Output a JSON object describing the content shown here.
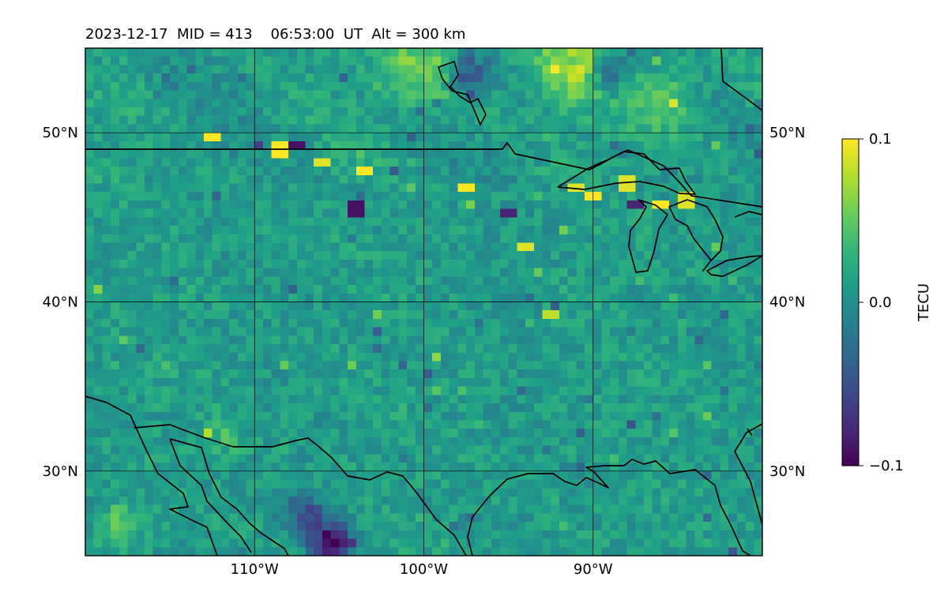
{
  "chart_data": {
    "type": "heatmap",
    "title": "2023-12-17  MID = 413    06:53:00  UT  Alt = 300 km",
    "projection": "plate-carree",
    "lon_range": [
      -120,
      -80
    ],
    "lat_range": [
      25,
      55
    ],
    "x_ticks": [
      -110,
      -100,
      -90
    ],
    "x_tick_labels": [
      "110°W",
      "100°W",
      "90°W"
    ],
    "y_ticks": [
      30,
      40,
      50
    ],
    "y_tick_labels": [
      "30°N",
      "40°N",
      "50°N"
    ],
    "grid": true,
    "colormap": "viridis",
    "colormap_stops": [
      "#440154",
      "#482878",
      "#3e4989",
      "#31688e",
      "#26828e",
      "#1f9e89",
      "#35b779",
      "#6ece58",
      "#b5de2b",
      "#fde725"
    ],
    "colorbar": {
      "label": "TECU",
      "vmin": -0.1,
      "vmax": 0.1,
      "ticks": [
        -0.1,
        0.0,
        0.1
      ],
      "tick_labels": [
        "−0.1",
        "0.0",
        "0.1"
      ]
    },
    "grid_resolution_deg": 0.5,
    "background_value": 0.01,
    "features": [
      {
        "kind": "positive-band",
        "lon": -100,
        "lat": 54,
        "value": 0.06
      },
      {
        "kind": "positive-band",
        "lon": -91,
        "lat": 54,
        "value": 0.07
      },
      {
        "kind": "positive-band",
        "lon": -86,
        "lat": 52,
        "value": 0.05
      },
      {
        "kind": "positive-patch",
        "lon": -118,
        "lat": 27,
        "value": 0.05
      },
      {
        "kind": "positive-patch",
        "lon": -112,
        "lat": 32,
        "value": 0.035
      },
      {
        "kind": "negative-patch",
        "lon": -105.5,
        "lat": 25.8,
        "value": -0.1
      },
      {
        "kind": "negative-patch",
        "lon": -107,
        "lat": 27.5,
        "value": -0.05
      },
      {
        "kind": "negative-patch",
        "lon": -89,
        "lat": 53.5,
        "value": -0.06
      },
      {
        "kind": "negative-patch",
        "lon": -97.5,
        "lat": 53.5,
        "value": -0.05
      },
      {
        "kind": "speckle-strong",
        "lon": -112.5,
        "lat": 49.8,
        "value": 0.1
      },
      {
        "kind": "speckle-strong",
        "lon": -108.5,
        "lat": 49,
        "value": 0.1
      },
      {
        "kind": "speckle-strong",
        "lon": -107.5,
        "lat": 49.3,
        "value": -0.09
      },
      {
        "kind": "speckle-strong",
        "lon": -106,
        "lat": 48.4,
        "value": 0.09
      },
      {
        "kind": "speckle-strong",
        "lon": -103.5,
        "lat": 47.8,
        "value": 0.1
      },
      {
        "kind": "speckle-strong",
        "lon": -97.5,
        "lat": 46.8,
        "value": 0.1
      },
      {
        "kind": "speckle-strong",
        "lon": -90,
        "lat": 46.2,
        "value": 0.1
      },
      {
        "kind": "speckle-strong",
        "lon": -88,
        "lat": 47,
        "value": 0.09
      },
      {
        "kind": "speckle-strong",
        "lon": -91,
        "lat": 46.9,
        "value": 0.09
      },
      {
        "kind": "speckle-strong",
        "lon": -86,
        "lat": 45.8,
        "value": 0.1
      },
      {
        "kind": "speckle-strong",
        "lon": -84.6,
        "lat": 46,
        "value": 0.09
      },
      {
        "kind": "speckle-strong",
        "lon": -87.5,
        "lat": 45.9,
        "value": -0.08
      },
      {
        "kind": "speckle-strong",
        "lon": -95,
        "lat": 45.3,
        "value": -0.08
      },
      {
        "kind": "speckle-strong",
        "lon": -94,
        "lat": 43.4,
        "value": 0.09
      },
      {
        "kind": "speckle-strong",
        "lon": -92.4,
        "lat": 39.3,
        "value": 0.08
      },
      {
        "kind": "speckle-strong",
        "lon": -104,
        "lat": 45.5,
        "value": -0.09
      }
    ]
  }
}
